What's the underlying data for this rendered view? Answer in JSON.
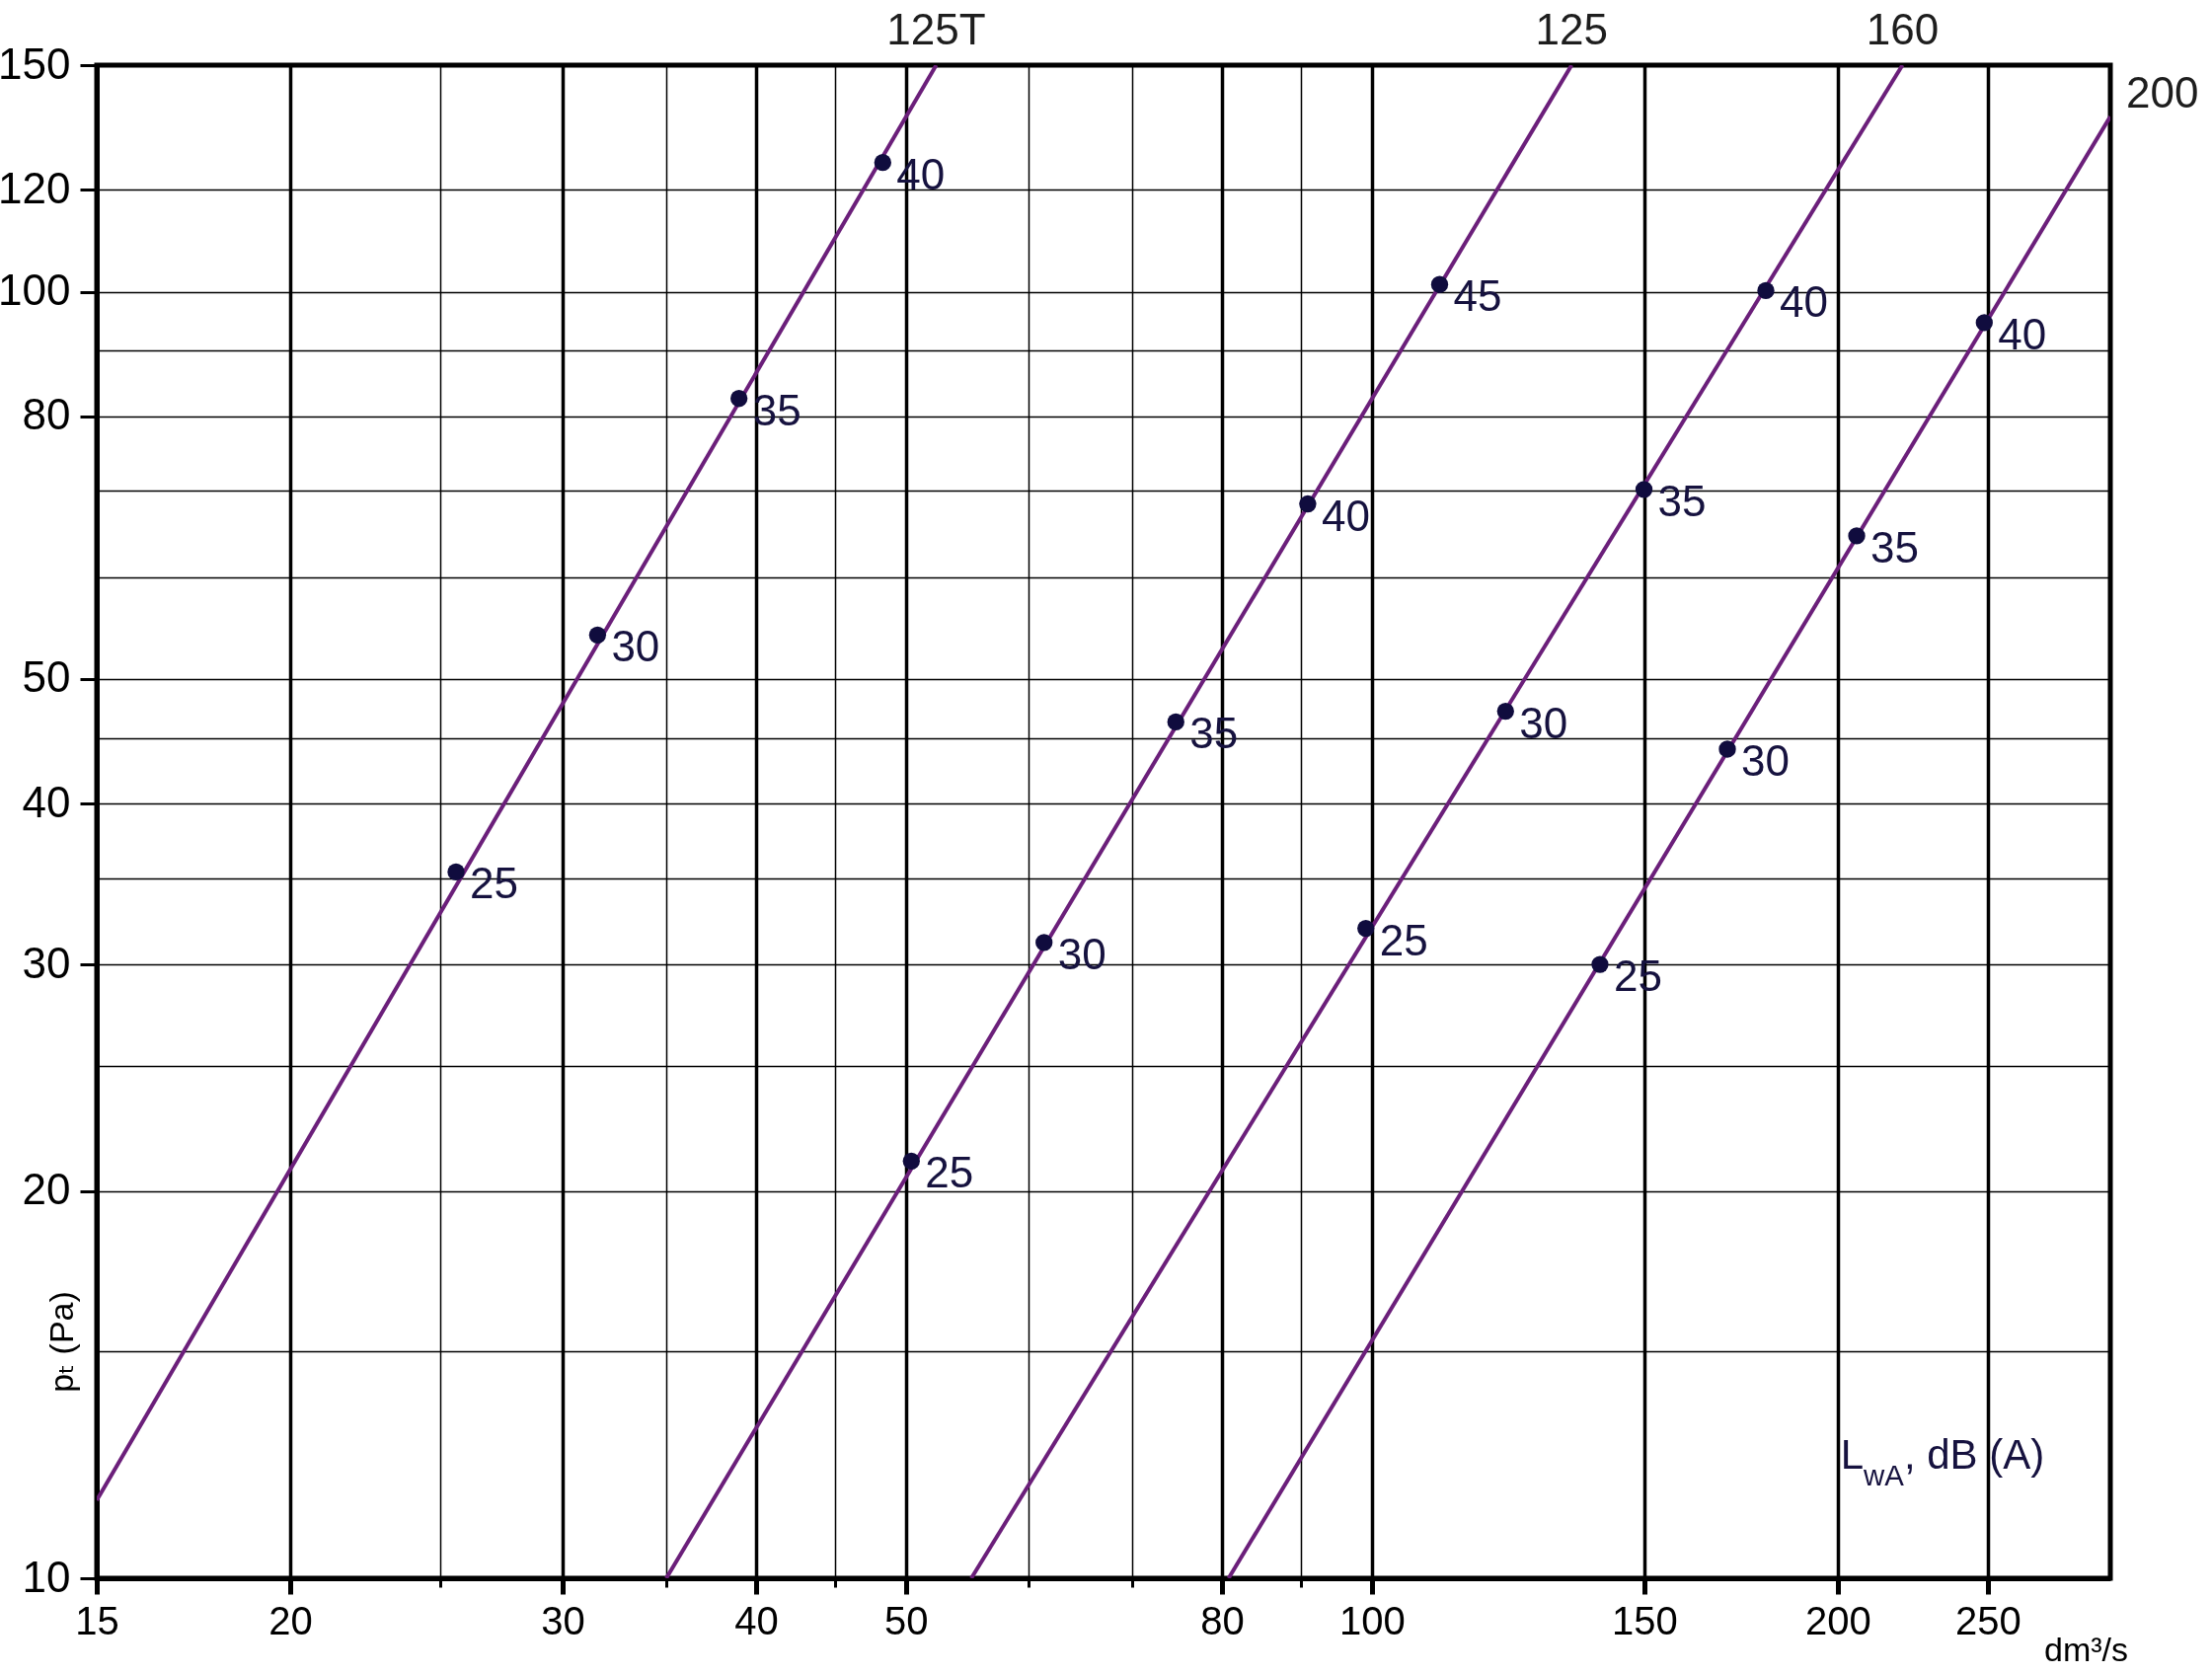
{
  "chart_data": {
    "type": "line",
    "xlabel": "dm³/s",
    "ylabel": "pₜ (Pa)",
    "log": "xy",
    "xlim": [
      15,
      300
    ],
    "ylim": [
      10,
      150
    ],
    "xticks": [
      15,
      20,
      {
        "value": 25,
        "label": null
      },
      30,
      {
        "value": 35,
        "label": null
      },
      40,
      {
        "value": 45,
        "label": null
      },
      50,
      {
        "value": 60,
        "label": null
      },
      {
        "value": 70,
        "label": null
      },
      80,
      {
        "value": 90,
        "label": null
      },
      100,
      150,
      200,
      250
    ],
    "yticks": [
      10,
      {
        "value": 15,
        "label": null
      },
      20,
      {
        "value": 25,
        "label": null
      },
      30,
      {
        "value": 35,
        "label": null
      },
      40,
      {
        "value": 45,
        "label": null
      },
      50,
      {
        "value": 60,
        "label": null
      },
      {
        "value": 70,
        "label": null
      },
      80,
      {
        "value": 90,
        "label": null
      },
      100,
      120,
      150
    ],
    "grid": true,
    "series": [
      {
        "name": "125T",
        "color": "#6b1f7a",
        "x": [
          15,
          52.3
        ],
        "values": [
          11.5,
          150
        ]
      },
      {
        "name": "125",
        "color": "#6b1f7a",
        "x": [
          35.0,
          134.6
        ],
        "values": [
          10,
          150
        ]
      },
      {
        "name": "160",
        "color": "#6b1f7a",
        "x": [
          55.1,
          220.2
        ],
        "values": [
          10,
          150
        ]
      },
      {
        "name": "200",
        "color": "#6b1f7a",
        "x": [
          80.8,
          300
        ],
        "values": [
          10,
          136.8
        ]
      },
      {
        "type": "scatter",
        "marker": "circle",
        "color": "#100c3e",
        "x": [
          25.6,
          31.6,
          39.0,
          48.3,
          50.4,
          61.4,
          74.7,
          90.9,
          110.6,
          99.1,
          122.0,
          149.9,
          179.7,
          140.4,
          169.7,
          205.7,
          248.7
        ],
        "values": [
          35.4,
          54.1,
          82.6,
          126,
          21.1,
          31.2,
          46.3,
          68.4,
          101.3,
          32.0,
          47.2,
          70.2,
          100.2,
          30.0,
          44.1,
          64.6,
          94.6
        ]
      }
    ],
    "annotations": [
      {
        "text": "25",
        "x": 25.6,
        "y": 35.4
      },
      {
        "text": "30",
        "x": 31.6,
        "y": 54.1
      },
      {
        "text": "35",
        "x": 39.0,
        "y": 82.6
      },
      {
        "text": "40",
        "x": 48.3,
        "y": 126
      },
      {
        "text": "25",
        "x": 50.4,
        "y": 21.1
      },
      {
        "text": "30",
        "x": 61.4,
        "y": 31.2
      },
      {
        "text": "35",
        "x": 74.7,
        "y": 46.3
      },
      {
        "text": "40",
        "x": 90.9,
        "y": 68.4
      },
      {
        "text": "45",
        "x": 110.6,
        "y": 101.3
      },
      {
        "text": "25",
        "x": 99.1,
        "y": 32.0
      },
      {
        "text": "30",
        "x": 122.0,
        "y": 47.2
      },
      {
        "text": "35",
        "x": 149.9,
        "y": 70.2
      },
      {
        "text": "40",
        "x": 179.7,
        "y": 100.2
      },
      {
        "text": "25",
        "x": 140.4,
        "y": 30.0
      },
      {
        "text": "30",
        "x": 169.7,
        "y": 44.1
      },
      {
        "text": "35",
        "x": 205.7,
        "y": 64.6
      },
      {
        "text": "40",
        "x": 248.7,
        "y": 94.6
      },
      "L$_{wA}$, dB (A)"
    ]
  }
}
